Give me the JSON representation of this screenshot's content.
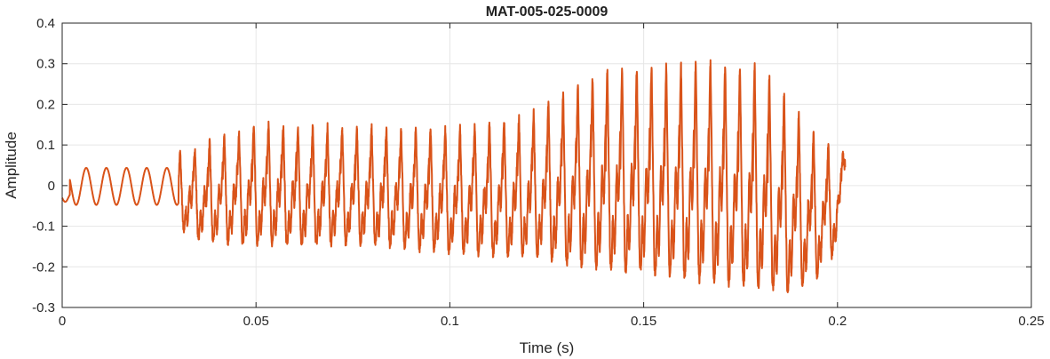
{
  "chart_data": {
    "type": "line",
    "title": "MAT-005-025-0009",
    "xlabel": "Time (s)",
    "ylabel": "Amplitude",
    "xlim": [
      0,
      0.25
    ],
    "ylim": [
      -0.3,
      0.4
    ],
    "xticks": [
      0,
      0.05,
      0.1,
      0.15,
      0.2,
      0.25
    ],
    "xtick_labels": [
      "0",
      "0.05",
      "0.1",
      "0.15",
      "0.2",
      "0.25"
    ],
    "yticks": [
      -0.3,
      -0.2,
      -0.1,
      0,
      0.1,
      0.2,
      0.3,
      0.4
    ],
    "ytick_labels": [
      "-0.3",
      "-0.2",
      "-0.1",
      "0",
      "0.1",
      "0.2",
      "0.3",
      "0.4"
    ],
    "grid": true,
    "series": [
      {
        "color": "#D95319",
        "duration": 0.202,
        "note_segments": [
          {
            "t_start": 0.0,
            "t_end": 0.03,
            "shape": "sine",
            "period": 0.0052,
            "amplitude": 0.048
          },
          {
            "t_start": 0.03,
            "t_end": 0.202,
            "shape": "voiced",
            "period": 0.0038
          }
        ],
        "envelope": [
          {
            "t": 0.03,
            "max": 0.08,
            "min": -0.1
          },
          {
            "t": 0.036,
            "max": 0.1,
            "min": -0.13
          },
          {
            "t": 0.05,
            "max": 0.15,
            "min": -0.14
          },
          {
            "t": 0.08,
            "max": 0.14,
            "min": -0.14
          },
          {
            "t": 0.1,
            "max": 0.14,
            "min": -0.16
          },
          {
            "t": 0.12,
            "max": 0.17,
            "min": -0.17
          },
          {
            "t": 0.13,
            "max": 0.23,
            "min": -0.19
          },
          {
            "t": 0.14,
            "max": 0.28,
            "min": -0.2
          },
          {
            "t": 0.15,
            "max": 0.29,
            "min": -0.21
          },
          {
            "t": 0.165,
            "max": 0.3,
            "min": -0.23
          },
          {
            "t": 0.18,
            "max": 0.29,
            "min": -0.25
          },
          {
            "t": 0.188,
            "max": 0.2,
            "min": -0.26
          },
          {
            "t": 0.195,
            "max": 0.12,
            "min": -0.22
          },
          {
            "t": 0.2,
            "max": 0.08,
            "min": -0.15
          },
          {
            "t": 0.202,
            "max": 0.07,
            "min": 0.05
          }
        ]
      }
    ]
  }
}
